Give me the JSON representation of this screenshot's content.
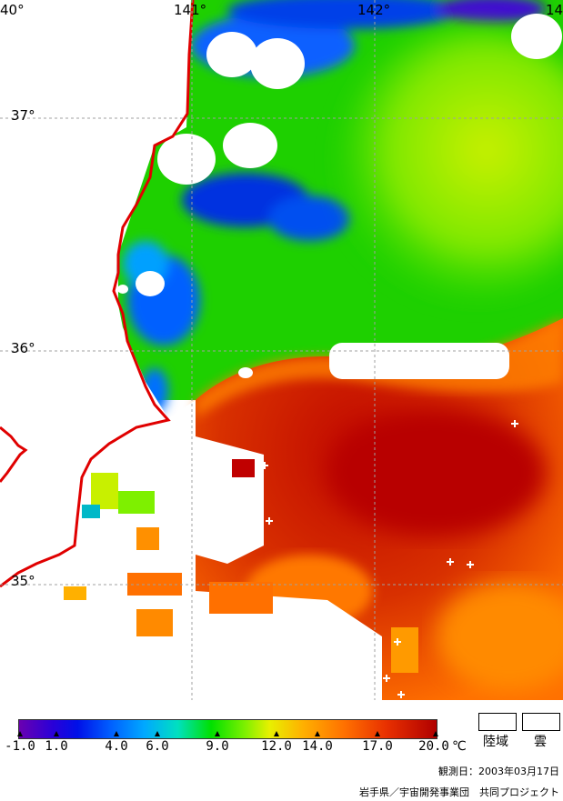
{
  "map": {
    "lon_labels": [
      "40°",
      "141°",
      "142°",
      "14"
    ],
    "lat_labels": [
      "37°",
      "36°",
      "35°"
    ]
  },
  "legend": {
    "ticks": [
      "-1.0",
      "1.0",
      "4.0",
      "6.0",
      "9.0",
      "12.0",
      "14.0",
      "17.0",
      "20.0"
    ],
    "unit": "℃",
    "land_label": "陸域",
    "cloud_label": "雲",
    "colors": {
      "land": "#ffffff",
      "cloud": "#ffffff",
      "coastline": "#e00000",
      "cold": "#6a00b0",
      "warm": "#b00000"
    }
  },
  "observation_date": "観測日：2003年03月17日",
  "credit": "岩手県／宇宙開発事業団　共同プロジェクト"
}
